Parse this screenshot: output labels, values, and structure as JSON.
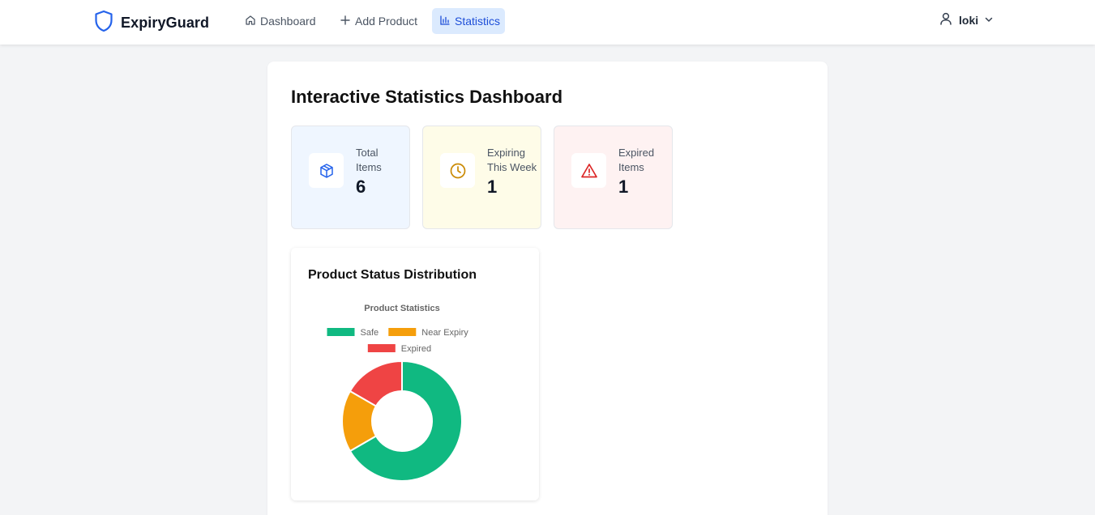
{
  "app": {
    "name": "ExpiryGuard"
  },
  "nav": {
    "items": [
      {
        "label": "Dashboard",
        "icon": "home-icon"
      },
      {
        "label": "Add Product",
        "icon": "plus-icon"
      },
      {
        "label": "Statistics",
        "icon": "bar-chart-icon",
        "active": true
      }
    ]
  },
  "user": {
    "name": "loki"
  },
  "page": {
    "title": "Interactive Statistics Dashboard"
  },
  "stats": [
    {
      "label": "Total Items",
      "value": "6",
      "icon": "package-icon",
      "color": "#2563eb"
    },
    {
      "label": "Expiring This Week",
      "value": "1",
      "icon": "clock-icon",
      "color": "#ca8a04"
    },
    {
      "label": "Expired Items",
      "value": "1",
      "icon": "alert-triangle-icon",
      "color": "#dc2626"
    }
  ],
  "chart_card": {
    "heading": "Product Status Distribution"
  },
  "chart_data": {
    "type": "pie",
    "variant": "doughnut",
    "title": "Product Statistics",
    "legend_position": "top",
    "categories": [
      "Safe",
      "Near Expiry",
      "Expired"
    ],
    "values": [
      4,
      1,
      1
    ],
    "colors": [
      "#10b981",
      "#f59e0b",
      "#ef4444"
    ]
  }
}
